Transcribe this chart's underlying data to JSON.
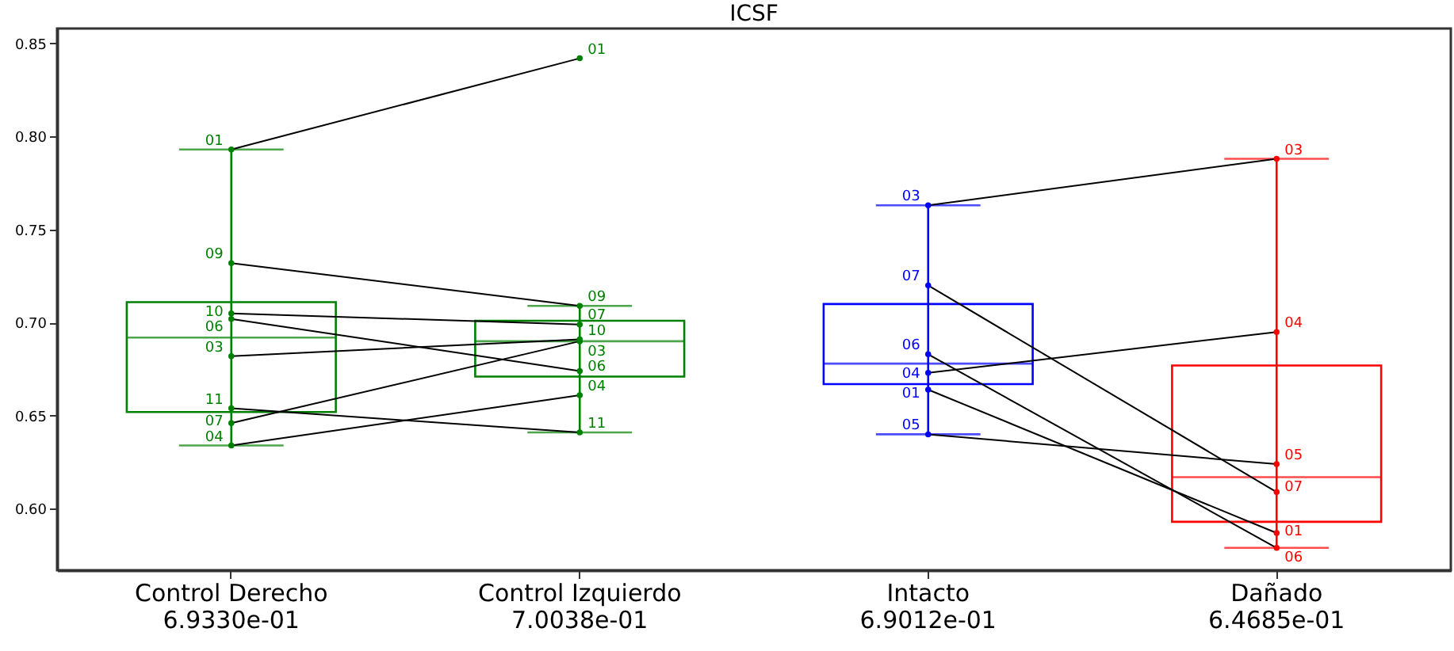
{
  "chart_data": {
    "type": "box",
    "title": "ICSF",
    "categories": [
      "Control Derecho\n6.9330e-01",
      "Control Izquierdo\n7.0038e-01",
      "Intacto\n6.9012e-01",
      "Dañado\n6.4685e-01"
    ],
    "colors": [
      "#008000",
      "#008000",
      "#0000ff",
      "#ff0000"
    ],
    "boxes": [
      {
        "low": 0.634,
        "q1": 0.652,
        "median": 0.692,
        "q3": 0.711,
        "high": 0.793
      },
      {
        "low": 0.641,
        "q1": 0.671,
        "median": 0.69,
        "q3": 0.701,
        "high": 0.709
      },
      {
        "low": 0.64,
        "q1": 0.667,
        "median": 0.678,
        "q3": 0.71,
        "high": 0.763
      },
      {
        "low": 0.579,
        "q1": 0.593,
        "median": 0.617,
        "q3": 0.677,
        "high": 0.788
      }
    ],
    "series": [
      {
        "name": "01",
        "type": "line",
        "color": "#000000",
        "x": [
          "Control Derecho\n6.9330e-01",
          "Control Izquierdo\n7.0038e-01"
        ],
        "values": [
          0.793,
          0.842
        ]
      },
      {
        "name": "03",
        "type": "line",
        "color": "#000000",
        "x": [
          "Control Derecho\n6.9330e-01",
          "Control Izquierdo\n7.0038e-01"
        ],
        "values": [
          0.682,
          0.691
        ]
      },
      {
        "name": "04",
        "type": "line",
        "color": "#000000",
        "x": [
          "Control Derecho\n6.9330e-01",
          "Control Izquierdo\n7.0038e-01"
        ],
        "values": [
          0.634,
          0.661
        ]
      },
      {
        "name": "06",
        "type": "line",
        "color": "#000000",
        "x": [
          "Control Derecho\n6.9330e-01",
          "Control Izquierdo\n7.0038e-01"
        ],
        "values": [
          0.702,
          0.674
        ]
      },
      {
        "name": "07",
        "type": "line",
        "color": "#000000",
        "x": [
          "Control Derecho\n6.9330e-01",
          "Control Izquierdo\n7.0038e-01"
        ],
        "values": [
          0.646,
          0.69
        ]
      },
      {
        "name": "09",
        "type": "line",
        "color": "#000000",
        "x": [
          "Control Derecho\n6.9330e-01",
          "Control Izquierdo\n7.0038e-01"
        ],
        "values": [
          0.732,
          0.709
        ]
      },
      {
        "name": "10",
        "type": "line",
        "color": "#000000",
        "x": [
          "Control Derecho\n6.9330e-01",
          "Control Izquierdo\n7.0038e-01"
        ],
        "values": [
          0.705,
          0.699
        ]
      },
      {
        "name": "11",
        "type": "line",
        "color": "#000000",
        "x": [
          "Control Derecho\n6.9330e-01",
          "Control Izquierdo\n7.0038e-01"
        ],
        "values": [
          0.654,
          0.641
        ]
      },
      {
        "name": "01",
        "type": "line",
        "color": "#000000",
        "x": [
          "Intacto\n6.9012e-01",
          "Dañado\n6.4685e-01"
        ],
        "values": [
          0.664,
          0.587
        ]
      },
      {
        "name": "03",
        "type": "line",
        "color": "#000000",
        "x": [
          "Intacto\n6.9012e-01",
          "Dañado\n6.4685e-01"
        ],
        "values": [
          0.763,
          0.788
        ]
      },
      {
        "name": "04",
        "type": "line",
        "color": "#000000",
        "x": [
          "Intacto\n6.9012e-01",
          "Dañado\n6.4685e-01"
        ],
        "values": [
          0.673,
          0.695
        ]
      },
      {
        "name": "05",
        "type": "line",
        "color": "#000000",
        "x": [
          "Intacto\n6.9012e-01",
          "Dañado\n6.4685e-01"
        ],
        "values": [
          0.64,
          0.624
        ]
      },
      {
        "name": "06",
        "type": "line",
        "color": "#000000",
        "x": [
          "Intacto\n6.9012e-01",
          "Dañado\n6.4685e-01"
        ],
        "values": [
          0.683,
          0.579
        ]
      },
      {
        "name": "07",
        "type": "line",
        "color": "#000000",
        "x": [
          "Intacto\n6.9012e-01",
          "Dañado\n6.4685e-01"
        ],
        "values": [
          0.72,
          0.609
        ]
      }
    ],
    "marker": "circle",
    "ylim": [
      0.567,
      0.858
    ],
    "yticks": [
      {
        "value": 0.6,
        "label": "0.60"
      },
      0.65,
      {
        "value": 0.7,
        "label": "0.70"
      },
      0.75,
      {
        "value": 0.8,
        "label": "0.80"
      },
      0.85
    ],
    "grid": false
  }
}
